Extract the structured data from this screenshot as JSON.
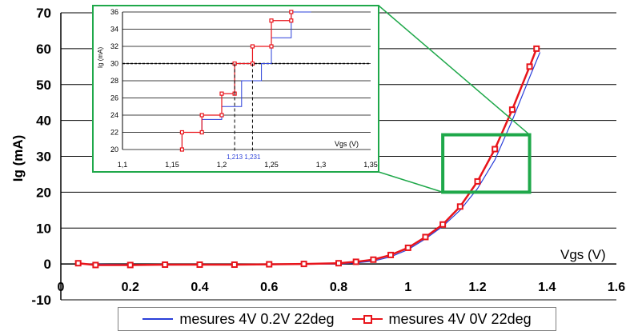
{
  "chart_data": {
    "type": "line",
    "title": "",
    "ylabel": "Ig (mA)",
    "xlabel": "Vgs (V)",
    "xlim": [
      0,
      1.6
    ],
    "ylim": [
      -10,
      70
    ],
    "xticks": [
      "0",
      "0.2",
      "0.4",
      "0.6",
      "0.8",
      "1",
      "1.2",
      "1.4",
      "1.6"
    ],
    "yticks": [
      "-10",
      "0",
      "10",
      "20",
      "30",
      "40",
      "50",
      "60",
      "70"
    ],
    "grid": true,
    "legend_position": "bottom",
    "series": [
      {
        "name": "mesures 4V 0.2V 22deg",
        "color": "#2a3fd9",
        "style": "line",
        "x": [
          0.05,
          0.3,
          0.6,
          0.8,
          0.85,
          0.9,
          0.95,
          1.0,
          1.05,
          1.1,
          1.15,
          1.2,
          1.25,
          1.3,
          1.35,
          1.38
        ],
        "y": [
          0,
          -0.3,
          -0.2,
          0,
          0.3,
          0.8,
          2,
          4,
          7,
          10.5,
          15,
          21,
          29,
          40,
          52,
          59
        ]
      },
      {
        "name": "mesures 4V 0V 22deg",
        "color": "#e8141b",
        "style": "line-square-markers",
        "x": [
          0.05,
          0.1,
          0.2,
          0.3,
          0.4,
          0.5,
          0.6,
          0.7,
          0.8,
          0.85,
          0.9,
          0.95,
          1.0,
          1.05,
          1.1,
          1.15,
          1.2,
          1.25,
          1.3,
          1.35,
          1.37
        ],
        "y": [
          0.2,
          -0.3,
          -0.3,
          -0.2,
          -0.2,
          -0.2,
          -0.1,
          0,
          0.2,
          0.6,
          1.2,
          2.5,
          4.5,
          7.5,
          11,
          16,
          23,
          32,
          43,
          55,
          60
        ]
      }
    ],
    "inset": {
      "xlabel": "Vgs (V)",
      "ylabel": "Ig (mA)",
      "xlim": [
        1.1,
        1.35
      ],
      "ylim": [
        20,
        36
      ],
      "xticks": [
        "1,1",
        "1,15",
        "1,2",
        "1,25",
        "1,3",
        "1,35"
      ],
      "yticks": [
        "20",
        "22",
        "24",
        "26",
        "28",
        "30",
        "32",
        "34",
        "36"
      ],
      "annotations": [
        "1,213",
        "1,231"
      ],
      "annotation_x": [
        1.213,
        1.231
      ],
      "reference_y": 30,
      "series": [
        {
          "color": "#2a3fd9",
          "x": [
            1.16,
            1.16,
            1.18,
            1.18,
            1.2,
            1.2,
            1.22,
            1.22,
            1.24,
            1.24,
            1.25,
            1.25,
            1.27,
            1.27,
            1.29
          ],
          "y": [
            20,
            22,
            22,
            23.5,
            23.5,
            25,
            25,
            28,
            28,
            30,
            30,
            33,
            33,
            36,
            36
          ]
        },
        {
          "color": "#e8141b",
          "x": [
            1.16,
            1.16,
            1.18,
            1.18,
            1.2,
            1.2,
            1.213,
            1.213,
            1.231,
            1.231,
            1.25,
            1.25,
            1.27,
            1.27
          ],
          "y": [
            20,
            22,
            22,
            24,
            24,
            26.5,
            26.5,
            30,
            30,
            32,
            32,
            35,
            35,
            36
          ]
        }
      ]
    }
  }
}
